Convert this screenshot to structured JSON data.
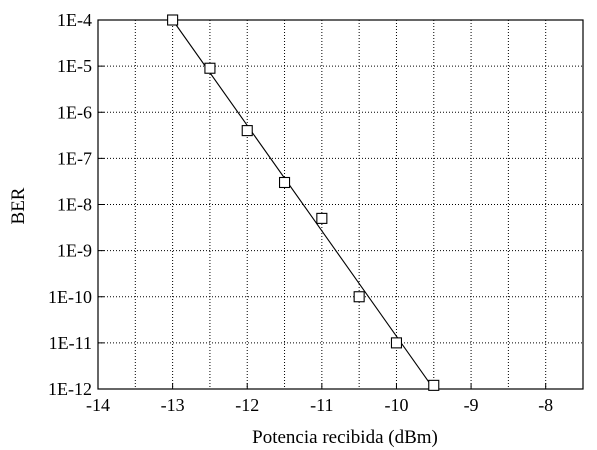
{
  "chart_data": {
    "type": "scatter",
    "title": "",
    "xlabel": "Potencia recibida (dBm)",
    "ylabel": "BER",
    "y_scale": "log",
    "xlim": [
      -14,
      -7.5
    ],
    "ylim": [
      1e-12,
      0.0001
    ],
    "grid": true,
    "x_ticks": [
      -14,
      -13,
      -12,
      -11,
      -10,
      -9,
      -8
    ],
    "x_tick_labels": [
      "-14",
      "-13",
      "-12",
      "-11",
      "-10",
      "-9",
      "-8"
    ],
    "y_ticks": [
      0.0001,
      1e-05,
      1e-06,
      1e-07,
      1e-08,
      1e-09,
      1e-10,
      1e-11,
      1e-12
    ],
    "y_tick_labels": [
      "1E-4",
      "1E-5",
      "1E-6",
      "1E-7",
      "1E-8",
      "1E-9",
      "1E-10",
      "1E-11",
      "1E-12"
    ],
    "series": [
      {
        "marker": "square",
        "x": [
          -13,
          -12.5,
          -12,
          -11.5,
          -11,
          -10.5,
          -10,
          -9.5
        ],
        "y": [
          0.0001,
          9e-06,
          4e-07,
          3e-08,
          5e-09,
          1e-10,
          1e-11,
          1.2e-12
        ]
      }
    ],
    "fit_line": {
      "x": [
        -13,
        -9.5
      ],
      "y": [
        0.0001,
        1e-12
      ]
    },
    "colors": {
      "axis": "#000000",
      "grid": "#000000",
      "marker": "#000000",
      "line": "#000000"
    }
  }
}
